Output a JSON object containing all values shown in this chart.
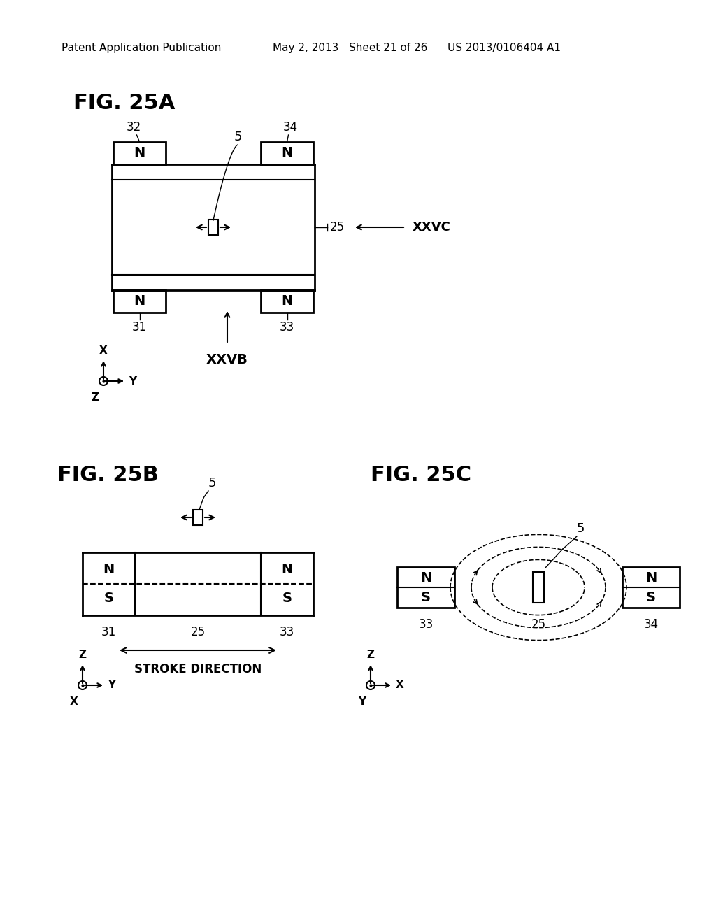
{
  "bg_color": "#ffffff",
  "header_left": "Patent Application Publication",
  "header_mid": "May 2, 2013   Sheet 21 of 26",
  "header_right": "US 2013/0106404 A1",
  "fig25a_title": "FIG. 25A",
  "fig25b_title": "FIG. 25B",
  "fig25c_title": "FIG. 25C"
}
